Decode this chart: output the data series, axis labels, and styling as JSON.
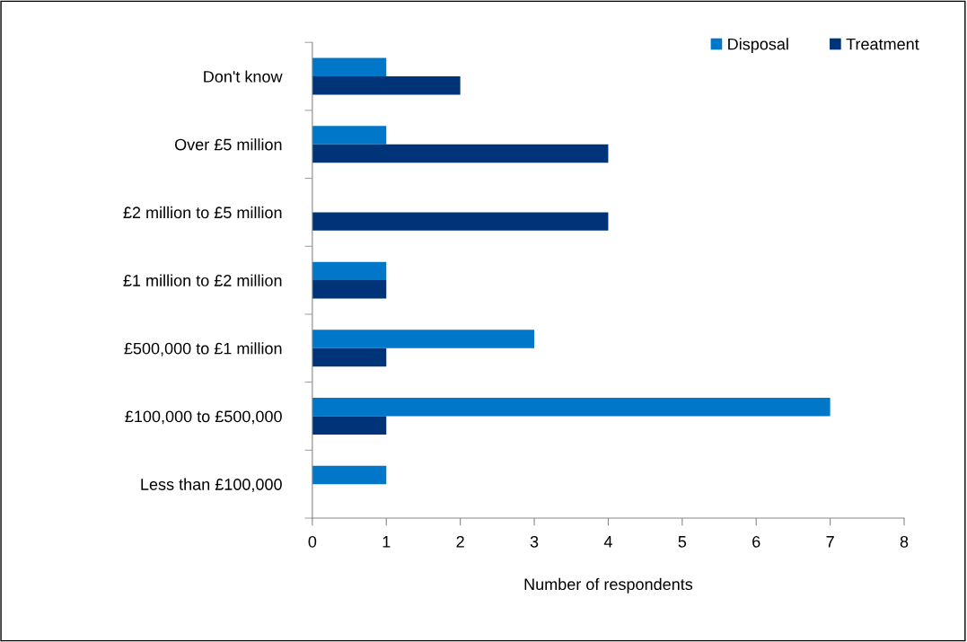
{
  "chart_data": {
    "type": "bar",
    "orientation": "horizontal",
    "xlabel": "Number of respondents",
    "categories": [
      "Don't know",
      "Over £5 million",
      "£2 million to £5 million",
      "£1 million to £2 million",
      "£500,000 to £1 million",
      "£100,000 to £500,000",
      "Less than £100,000"
    ],
    "series": [
      {
        "name": "Disposal",
        "color": "#0077c8",
        "values": [
          1,
          1,
          0,
          1,
          3,
          7,
          1
        ]
      },
      {
        "name": "Treatment",
        "color": "#003478",
        "values": [
          2,
          4,
          4,
          1,
          1,
          1,
          0
        ]
      }
    ],
    "xlim": [
      0,
      8
    ],
    "xticks": [
      0,
      1,
      2,
      3,
      4,
      5,
      6,
      7,
      8
    ],
    "grid": false,
    "legend": "top right"
  }
}
